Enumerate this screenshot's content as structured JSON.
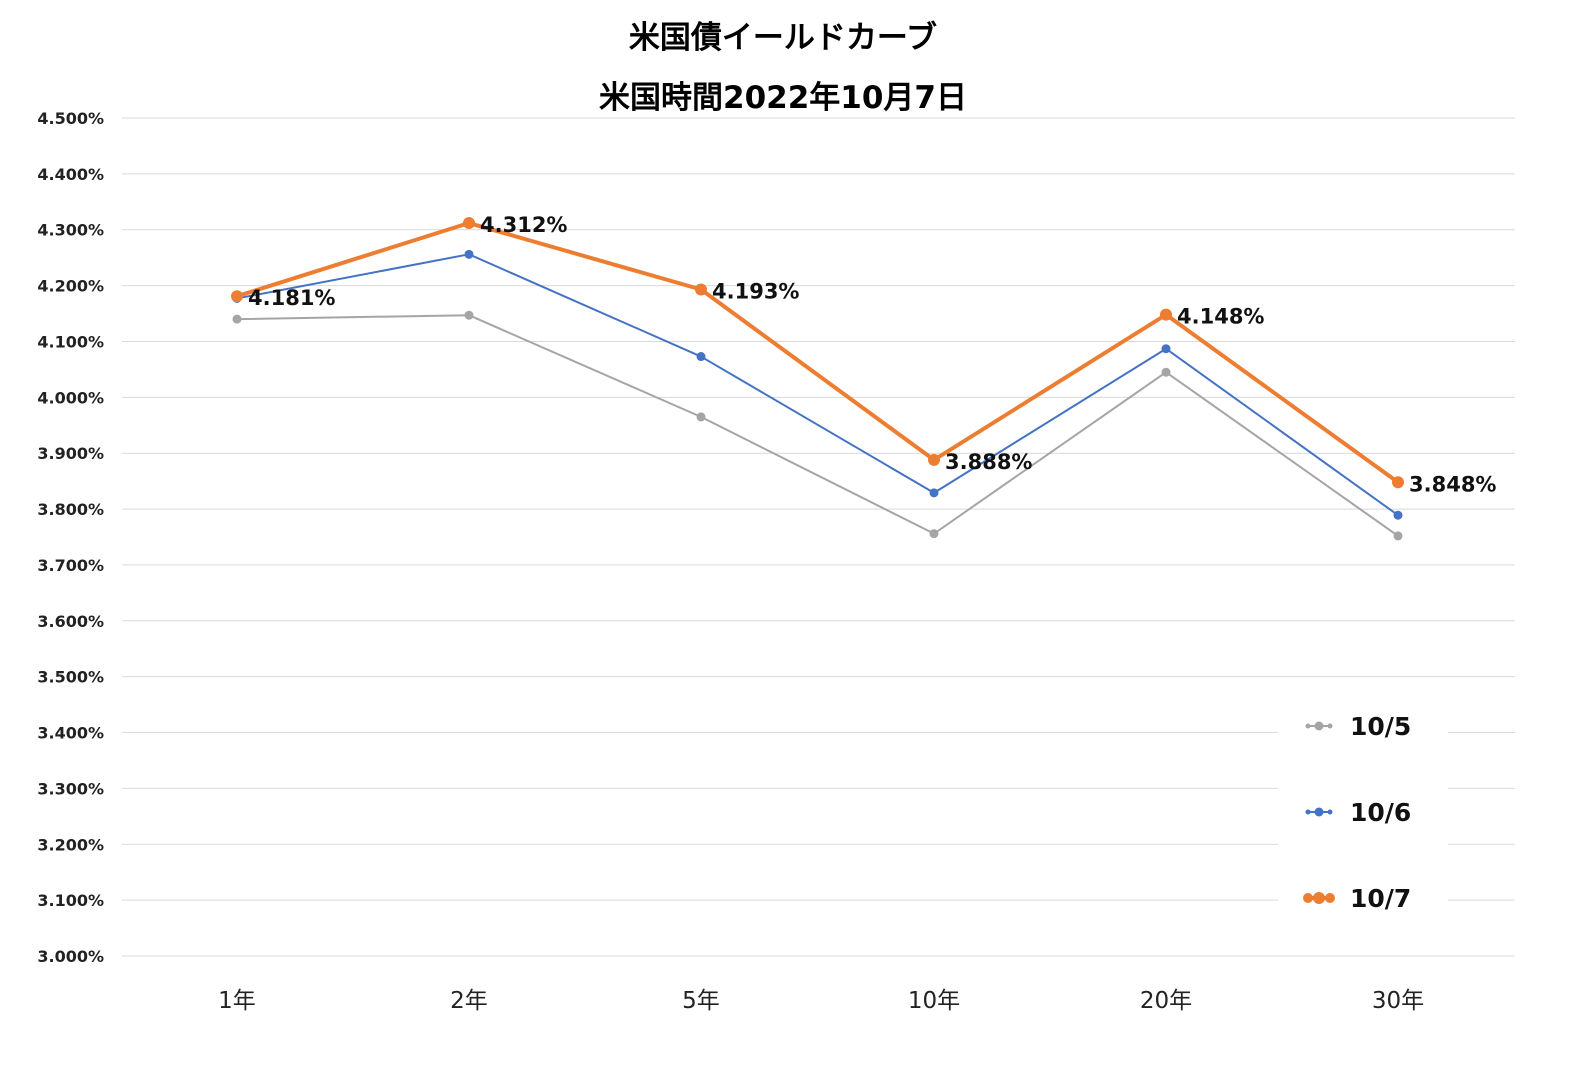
{
  "chart_data": {
    "type": "line",
    "title": "米国債イールドカーブ",
    "subtitle": "米国時間2022年10月7日",
    "xlabel": "",
    "ylabel": "",
    "categories": [
      "1年",
      "2年",
      "5年",
      "10年",
      "20年",
      "30年"
    ],
    "ylim": [
      3.0,
      4.5
    ],
    "yticks": [
      "3.000%",
      "3.100%",
      "3.200%",
      "3.300%",
      "3.400%",
      "3.500%",
      "3.600%",
      "3.700%",
      "3.800%",
      "3.900%",
      "4.000%",
      "4.100%",
      "4.200%",
      "4.300%",
      "4.400%",
      "4.500%"
    ],
    "grid": true,
    "legend_position": "right",
    "series": [
      {
        "name": "10/5",
        "color": "#a5a5a5",
        "values": [
          4.14,
          4.147,
          3.965,
          3.756,
          4.045,
          3.752
        ]
      },
      {
        "name": "10/6",
        "color": "#4472c4",
        "values": [
          4.177,
          4.256,
          4.073,
          3.829,
          4.087,
          3.789
        ]
      },
      {
        "name": "10/7",
        "color": "#ed7d31",
        "values": [
          4.181,
          4.312,
          4.193,
          3.888,
          4.148,
          3.848
        ],
        "data_labels": [
          "4.181%",
          "4.312%",
          "4.193%",
          "3.888%",
          "4.148%",
          "3.848%"
        ]
      }
    ]
  }
}
